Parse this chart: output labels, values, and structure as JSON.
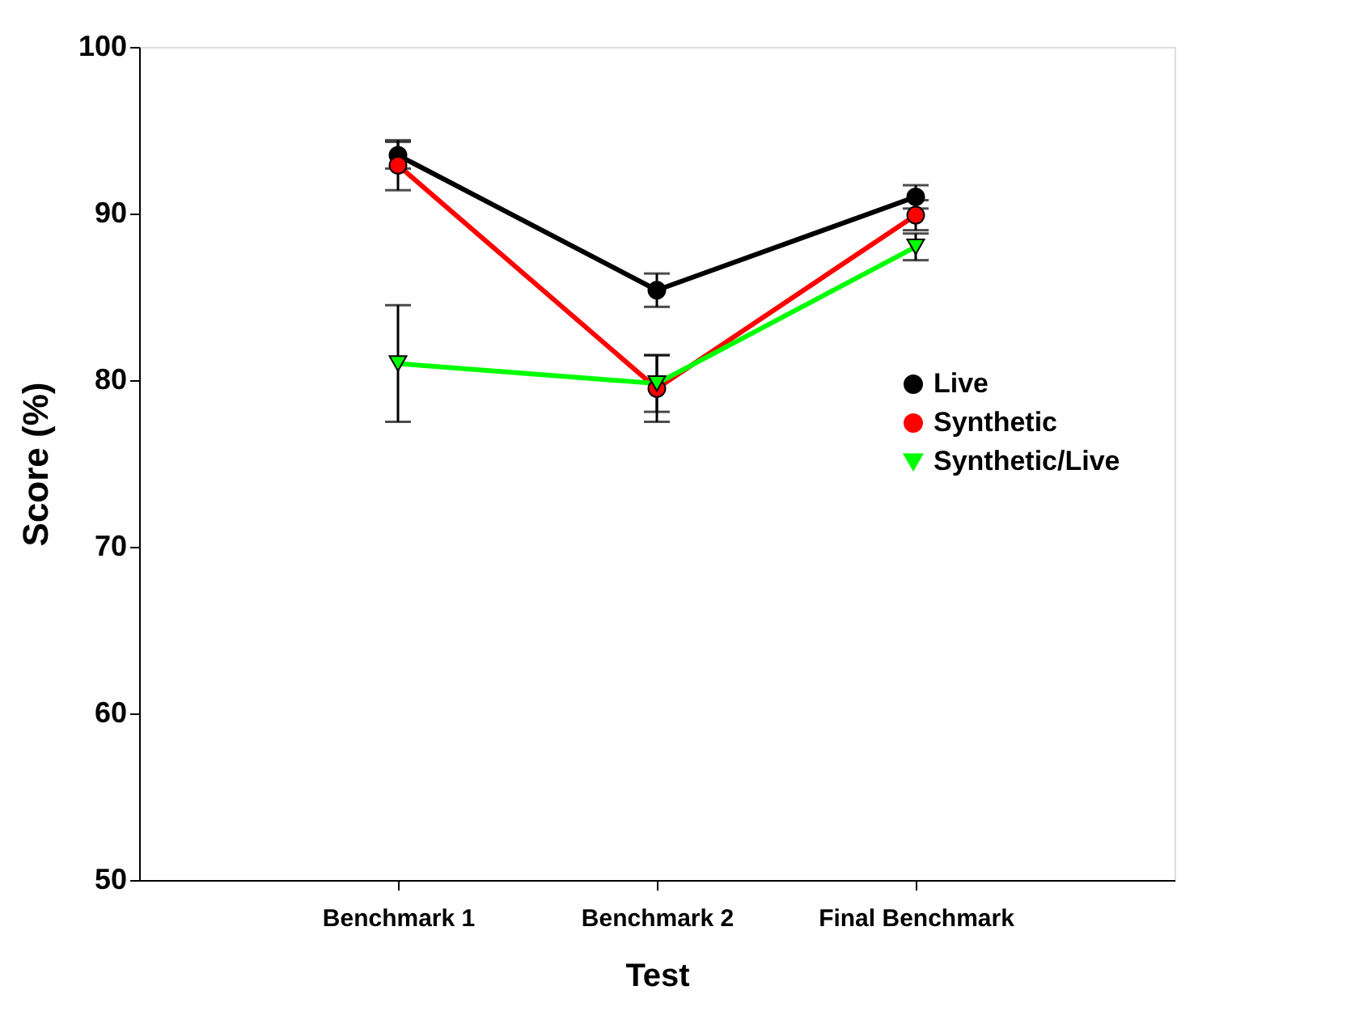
{
  "chart_data": {
    "type": "line",
    "xlabel": "Test",
    "ylabel": "Score (%)",
    "categories": [
      "Benchmark 1",
      "Benchmark 2",
      "Final Benchmark"
    ],
    "ylim": [
      50,
      100
    ],
    "yticks": [
      50,
      60,
      70,
      80,
      90,
      100
    ],
    "grid": false,
    "legend": "right",
    "series": [
      {
        "name": "Live",
        "color": "#000000",
        "marker": "circle",
        "values": [
          93.5,
          85.4,
          91.0
        ],
        "errors": [
          0.8,
          1.0,
          0.7
        ]
      },
      {
        "name": "Synthetic",
        "color": "#ff0000",
        "marker": "circle",
        "values": [
          92.9,
          79.5,
          89.9
        ],
        "errors": [
          1.5,
          2.0,
          0.9
        ]
      },
      {
        "name": "Synthetic/Live",
        "color": "#00ff00",
        "marker": "triangle",
        "values": [
          81.0,
          79.8,
          88.0
        ],
        "errors": [
          3.5,
          1.7,
          0.8
        ]
      }
    ]
  }
}
